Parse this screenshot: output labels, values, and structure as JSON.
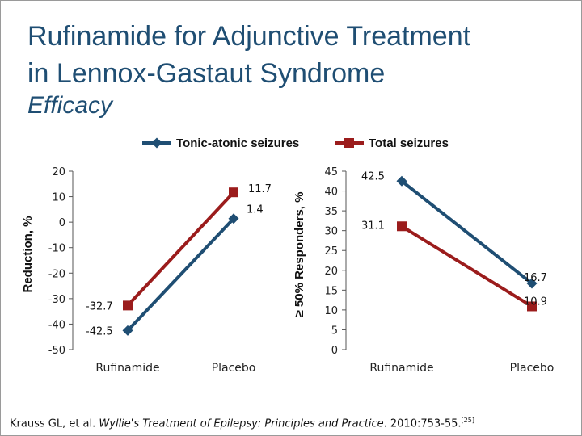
{
  "slide": {
    "title_line1": "Rufinamide for Adjunctive Treatment",
    "title_line2": "in Lennox-Gastaut Syndrome",
    "subtitle": "Efficacy",
    "reference": {
      "authors": "Krauss GL, et al. ",
      "source": "Wyllie's Treatment of Epilepsy: Principles and Practice",
      "details": ". 2010:753-55.",
      "sup": "[25]"
    }
  },
  "legend": [
    {
      "label": "Tonic-atonic seizures",
      "color": "#1f4e73",
      "marker": "diamond"
    },
    {
      "label": "Total seizures",
      "color": "#9b1c1c",
      "marker": "square"
    }
  ],
  "chart_data": [
    {
      "type": "line",
      "categories": [
        "Rufinamide",
        "Placebo"
      ],
      "ylabel": "Reduction, %",
      "ylim": [
        -50,
        20
      ],
      "yticks": [
        20,
        10,
        0,
        -10,
        -20,
        -30,
        -40,
        -50
      ],
      "series": [
        {
          "name": "Tonic-atonic seizures",
          "values": [
            -42.5,
            1.4
          ],
          "labels": [
            "-42.5",
            "1.4"
          ],
          "color": "#1f4e73",
          "marker": "diamond"
        },
        {
          "name": "Total seizures",
          "values": [
            -32.7,
            11.7
          ],
          "labels": [
            "-32.7",
            "11.7"
          ],
          "color": "#9b1c1c",
          "marker": "square"
        }
      ]
    },
    {
      "type": "line",
      "categories": [
        "Rufinamide",
        "Placebo"
      ],
      "ylabel": "≥ 50% Responders, %",
      "ylim": [
        0,
        45
      ],
      "yticks": [
        45,
        40,
        35,
        30,
        25,
        20,
        15,
        10,
        5,
        0
      ],
      "series": [
        {
          "name": "Tonic-atonic seizures",
          "values": [
            42.5,
            16.7
          ],
          "labels": [
            "42.5",
            "16.7"
          ],
          "color": "#1f4e73",
          "marker": "diamond"
        },
        {
          "name": "Total seizures",
          "values": [
            31.1,
            10.9
          ],
          "labels": [
            "31.1",
            "10.9"
          ],
          "color": "#9b1c1c",
          "marker": "square"
        }
      ]
    }
  ]
}
